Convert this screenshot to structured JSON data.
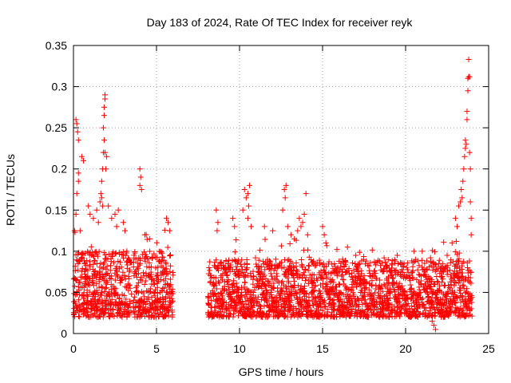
{
  "chart_data": {
    "type": "scatter",
    "title": "Day 183 of 2024, Rate Of TEC Index for receiver reyk",
    "xlabel": "GPS time / hours",
    "ylabel": "ROTI / TECUs",
    "xlim": [
      0,
      25
    ],
    "ylim": [
      0,
      0.35
    ],
    "xticks": [
      0,
      5,
      10,
      15,
      20,
      25
    ],
    "yticks": [
      0,
      0.05,
      0.1,
      0.15,
      0.2,
      0.25,
      0.3,
      0.35
    ],
    "xtick_labels": [
      "0",
      "5",
      "10",
      "15",
      "20",
      "25"
    ],
    "ytick_labels": [
      "0",
      "0.05",
      "0.1",
      "0.15",
      "0.2",
      "0.25",
      "0.3",
      "0.35"
    ],
    "grid": true,
    "marker": "+",
    "color": "#ff0000",
    "series": [
      {
        "name": "ROTI",
        "segments": [
          {
            "start": 0.0,
            "end": 3.5,
            "base_low": 0.02,
            "base_high": 0.1
          },
          {
            "start": 3.6,
            "end": 6.0,
            "base_low": 0.02,
            "base_high": 0.1
          },
          {
            "start": 8.1,
            "end": 24.0,
            "base_low": 0.02,
            "base_high": 0.09
          }
        ],
        "points": [
          {
            "x": 0.15,
            "y": 0.26
          },
          {
            "x": 0.2,
            "y": 0.255
          },
          {
            "x": 0.25,
            "y": 0.245
          },
          {
            "x": 0.3,
            "y": 0.235
          },
          {
            "x": 0.3,
            "y": 0.195
          },
          {
            "x": 0.3,
            "y": 0.185
          },
          {
            "x": 0.2,
            "y": 0.17
          },
          {
            "x": 0.15,
            "y": 0.145
          },
          {
            "x": 0.5,
            "y": 0.215
          },
          {
            "x": 0.6,
            "y": 0.21
          },
          {
            "x": 0.4,
            "y": 0.125
          },
          {
            "x": 0.9,
            "y": 0.155
          },
          {
            "x": 1.0,
            "y": 0.145
          },
          {
            "x": 1.2,
            "y": 0.14
          },
          {
            "x": 1.4,
            "y": 0.15
          },
          {
            "x": 1.5,
            "y": 0.135
          },
          {
            "x": 1.6,
            "y": 0.16
          },
          {
            "x": 1.65,
            "y": 0.17
          },
          {
            "x": 1.7,
            "y": 0.185
          },
          {
            "x": 1.75,
            "y": 0.2
          },
          {
            "x": 1.8,
            "y": 0.22
          },
          {
            "x": 1.8,
            "y": 0.25
          },
          {
            "x": 1.85,
            "y": 0.265
          },
          {
            "x": 1.85,
            "y": 0.275
          },
          {
            "x": 1.9,
            "y": 0.285
          },
          {
            "x": 1.9,
            "y": 0.29
          },
          {
            "x": 1.85,
            "y": 0.235
          },
          {
            "x": 1.9,
            "y": 0.22
          },
          {
            "x": 2.0,
            "y": 0.215
          },
          {
            "x": 1.95,
            "y": 0.2
          },
          {
            "x": 1.7,
            "y": 0.165
          },
          {
            "x": 1.75,
            "y": 0.155
          },
          {
            "x": 2.1,
            "y": 0.155
          },
          {
            "x": 2.3,
            "y": 0.14
          },
          {
            "x": 2.5,
            "y": 0.145
          },
          {
            "x": 2.6,
            "y": 0.13
          },
          {
            "x": 2.7,
            "y": 0.15
          },
          {
            "x": 3.0,
            "y": 0.135
          },
          {
            "x": 3.1,
            "y": 0.125
          },
          {
            "x": 4.0,
            "y": 0.2
          },
          {
            "x": 4.05,
            "y": 0.19
          },
          {
            "x": 4.0,
            "y": 0.18
          },
          {
            "x": 4.1,
            "y": 0.175
          },
          {
            "x": 4.3,
            "y": 0.12
          },
          {
            "x": 4.6,
            "y": 0.115
          },
          {
            "x": 5.6,
            "y": 0.14
          },
          {
            "x": 5.7,
            "y": 0.135
          },
          {
            "x": 5.8,
            "y": 0.125
          },
          {
            "x": 8.6,
            "y": 0.15
          },
          {
            "x": 8.7,
            "y": 0.135
          },
          {
            "x": 8.65,
            "y": 0.125
          },
          {
            "x": 9.6,
            "y": 0.14
          },
          {
            "x": 9.7,
            "y": 0.13
          },
          {
            "x": 10.3,
            "y": 0.175
          },
          {
            "x": 10.4,
            "y": 0.165
          },
          {
            "x": 10.5,
            "y": 0.17
          },
          {
            "x": 10.6,
            "y": 0.18
          },
          {
            "x": 10.55,
            "y": 0.155
          },
          {
            "x": 10.5,
            "y": 0.14
          },
          {
            "x": 10.7,
            "y": 0.13
          },
          {
            "x": 10.2,
            "y": 0.15
          },
          {
            "x": 11.5,
            "y": 0.13
          },
          {
            "x": 12.0,
            "y": 0.125
          },
          {
            "x": 12.6,
            "y": 0.15
          },
          {
            "x": 12.7,
            "y": 0.175
          },
          {
            "x": 12.8,
            "y": 0.18
          },
          {
            "x": 12.75,
            "y": 0.165
          },
          {
            "x": 12.9,
            "y": 0.13
          },
          {
            "x": 13.1,
            "y": 0.12
          },
          {
            "x": 13.3,
            "y": 0.115
          },
          {
            "x": 13.5,
            "y": 0.125
          },
          {
            "x": 13.6,
            "y": 0.14
          },
          {
            "x": 13.7,
            "y": 0.13
          },
          {
            "x": 13.8,
            "y": 0.135
          },
          {
            "x": 14.0,
            "y": 0.17
          },
          {
            "x": 13.9,
            "y": 0.145
          },
          {
            "x": 14.1,
            "y": 0.12
          },
          {
            "x": 15.0,
            "y": 0.13
          },
          {
            "x": 15.1,
            "y": 0.12
          },
          {
            "x": 15.2,
            "y": 0.11
          },
          {
            "x": 16.5,
            "y": 0.105
          },
          {
            "x": 17.0,
            "y": 0.095
          },
          {
            "x": 19.5,
            "y": 0.095
          },
          {
            "x": 20.5,
            "y": 0.1
          },
          {
            "x": 21.0,
            "y": 0.1
          },
          {
            "x": 21.5,
            "y": 0.092
          },
          {
            "x": 22.0,
            "y": 0.085
          },
          {
            "x": 22.5,
            "y": 0.095
          },
          {
            "x": 22.8,
            "y": 0.11
          },
          {
            "x": 23.0,
            "y": 0.14
          },
          {
            "x": 23.1,
            "y": 0.13
          },
          {
            "x": 23.2,
            "y": 0.155
          },
          {
            "x": 23.3,
            "y": 0.16
          },
          {
            "x": 23.35,
            "y": 0.175
          },
          {
            "x": 23.4,
            "y": 0.165
          },
          {
            "x": 23.45,
            "y": 0.185
          },
          {
            "x": 23.5,
            "y": 0.2
          },
          {
            "x": 23.55,
            "y": 0.215
          },
          {
            "x": 23.6,
            "y": 0.225
          },
          {
            "x": 23.6,
            "y": 0.235
          },
          {
            "x": 23.65,
            "y": 0.23
          },
          {
            "x": 23.7,
            "y": 0.26
          },
          {
            "x": 23.7,
            "y": 0.27
          },
          {
            "x": 23.75,
            "y": 0.295
          },
          {
            "x": 23.75,
            "y": 0.31
          },
          {
            "x": 23.8,
            "y": 0.312
          },
          {
            "x": 23.85,
            "y": 0.312
          },
          {
            "x": 23.8,
            "y": 0.333
          },
          {
            "x": 23.85,
            "y": 0.22
          },
          {
            "x": 23.9,
            "y": 0.2
          },
          {
            "x": 23.9,
            "y": 0.16
          },
          {
            "x": 23.95,
            "y": 0.14
          },
          {
            "x": 23.95,
            "y": 0.12
          },
          {
            "x": 21.8,
            "y": 0.005
          },
          {
            "x": 21.7,
            "y": 0.01
          },
          {
            "x": 21.6,
            "y": 0.015
          }
        ]
      }
    ]
  }
}
